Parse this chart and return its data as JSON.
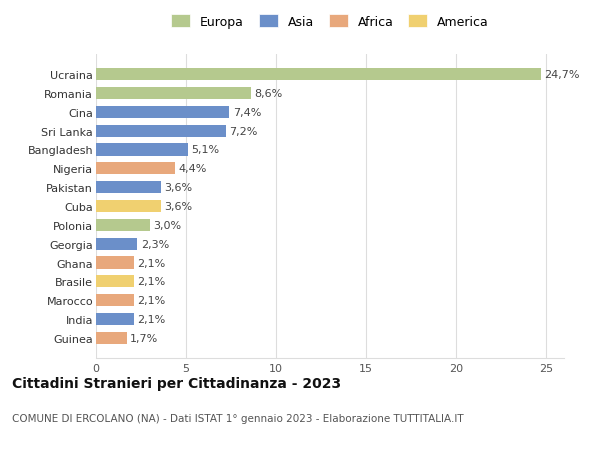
{
  "categories": [
    "Guinea",
    "India",
    "Marocco",
    "Brasile",
    "Ghana",
    "Georgia",
    "Polonia",
    "Cuba",
    "Pakistan",
    "Nigeria",
    "Bangladesh",
    "Sri Lanka",
    "Cina",
    "Romania",
    "Ucraina"
  ],
  "values": [
    1.7,
    2.1,
    2.1,
    2.1,
    2.1,
    2.3,
    3.0,
    3.6,
    3.6,
    4.4,
    5.1,
    7.2,
    7.4,
    8.6,
    24.7
  ],
  "labels": [
    "1,7%",
    "2,1%",
    "2,1%",
    "2,1%",
    "2,1%",
    "2,3%",
    "3,0%",
    "3,6%",
    "3,6%",
    "4,4%",
    "5,1%",
    "7,2%",
    "7,4%",
    "8,6%",
    "24,7%"
  ],
  "colors": [
    "#e8a87c",
    "#6b8fc9",
    "#e8a87c",
    "#f0d070",
    "#e8a87c",
    "#6b8fc9",
    "#b5c98e",
    "#f0d070",
    "#6b8fc9",
    "#e8a87c",
    "#6b8fc9",
    "#6b8fc9",
    "#6b8fc9",
    "#b5c98e",
    "#b5c98e"
  ],
  "legend_labels": [
    "Europa",
    "Asia",
    "Africa",
    "America"
  ],
  "legend_colors": [
    "#b5c98e",
    "#6b8fc9",
    "#e8a87c",
    "#f0d070"
  ],
  "title": "Cittadini Stranieri per Cittadinanza - 2023",
  "subtitle": "COMUNE DI ERCOLANO (NA) - Dati ISTAT 1° gennaio 2023 - Elaborazione TUTTITALIA.IT",
  "xlim": [
    0,
    26
  ],
  "xticks": [
    0,
    5,
    10,
    15,
    20,
    25
  ],
  "background_color": "#ffffff",
  "grid_color": "#dddddd",
  "bar_height": 0.65,
  "label_fontsize": 8,
  "title_fontsize": 10,
  "subtitle_fontsize": 7.5,
  "tick_fontsize": 8,
  "legend_fontsize": 9
}
